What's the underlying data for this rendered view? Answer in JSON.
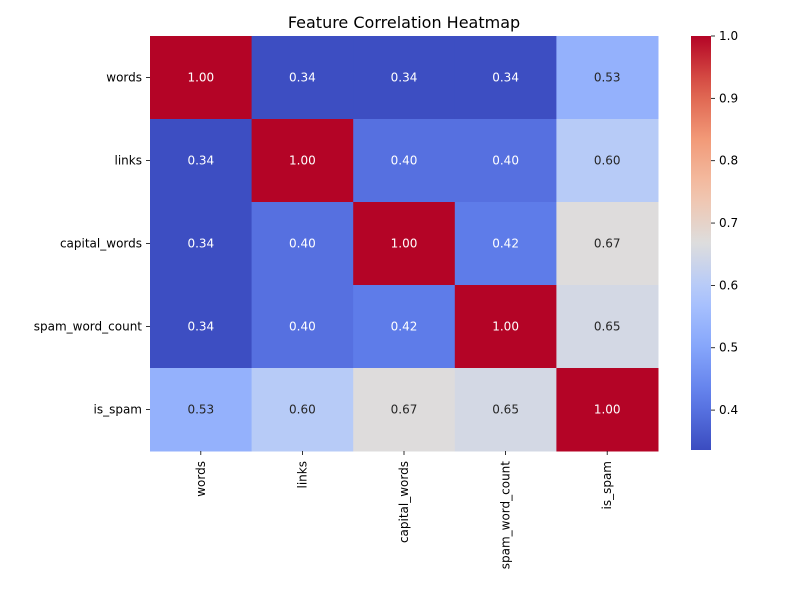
{
  "chart_data": {
    "type": "heatmap",
    "title": "Feature Correlation Heatmap",
    "xlabel": "",
    "ylabel": "",
    "row_labels": [
      "words",
      "links",
      "capital_words",
      "spam_word_count",
      "is_spam"
    ],
    "col_labels": [
      "words",
      "links",
      "capital_words",
      "spam_word_count",
      "is_spam"
    ],
    "values": [
      [
        1.0,
        0.34,
        0.34,
        0.34,
        0.53
      ],
      [
        0.34,
        1.0,
        0.4,
        0.4,
        0.6
      ],
      [
        0.34,
        0.4,
        1.0,
        0.42,
        0.67
      ],
      [
        0.34,
        0.4,
        0.42,
        1.0,
        0.65
      ],
      [
        0.53,
        0.6,
        0.67,
        0.65,
        1.0
      ]
    ],
    "cell_labels": [
      [
        "1.00",
        "0.34",
        "0.34",
        "0.34",
        "0.53"
      ],
      [
        "0.34",
        "1.00",
        "0.40",
        "0.40",
        "0.60"
      ],
      [
        "0.34",
        "0.40",
        "1.00",
        "0.42",
        "0.67"
      ],
      [
        "0.34",
        "0.40",
        "0.42",
        "1.00",
        "0.65"
      ],
      [
        "0.53",
        "0.60",
        "0.67",
        "0.65",
        "1.00"
      ]
    ],
    "colormap": "coolwarm",
    "vmin": 0.336,
    "vmax": 1.0,
    "colorbar_ticks": [
      "0.4",
      "0.5",
      "0.6",
      "0.7",
      "0.8",
      "0.9",
      "1.0"
    ],
    "colorbar_tick_values": [
      0.4,
      0.5,
      0.6,
      0.7,
      0.8,
      0.9,
      1.0
    ],
    "grid": false
  }
}
